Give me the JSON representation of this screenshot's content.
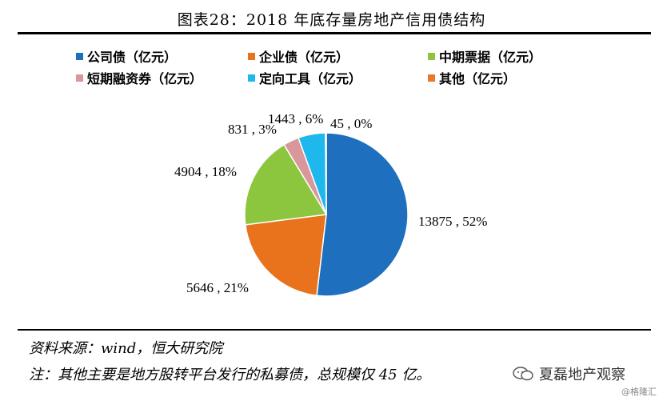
{
  "header": {
    "title": "图表28：2018 年底存量房地产信用债结构"
  },
  "chart_data": {
    "type": "pie",
    "categories": [
      "公司债（亿元）",
      "企业债（亿元）",
      "中期票据（亿元）",
      "短期融资券（亿元）",
      "定向工具（亿元）",
      "其他（亿元）"
    ],
    "values": [
      13875,
      5646,
      4904,
      831,
      1443,
      45
    ],
    "percents": [
      "52%",
      "21%",
      "18%",
      "3%",
      "6%",
      "0%"
    ],
    "data_labels": [
      "13875 , 52%",
      "5646 , 21%",
      "4904 , 18%",
      "831 , 3%",
      "1443 , 6%",
      "45 , 0%"
    ],
    "colors": [
      "#1F6FBF",
      "#E8731C",
      "#8CC63F",
      "#D9979C",
      "#1FB8EC",
      "#E8792A"
    ],
    "legend_placement": "top"
  },
  "footer": {
    "source": "资料来源：wind，恒大研究院",
    "note": "注：其他主要是地方股转平台发行的私募债，总规模仅 45 亿。",
    "watermark": "夏磊地产观察",
    "tag": "@格隆汇"
  }
}
